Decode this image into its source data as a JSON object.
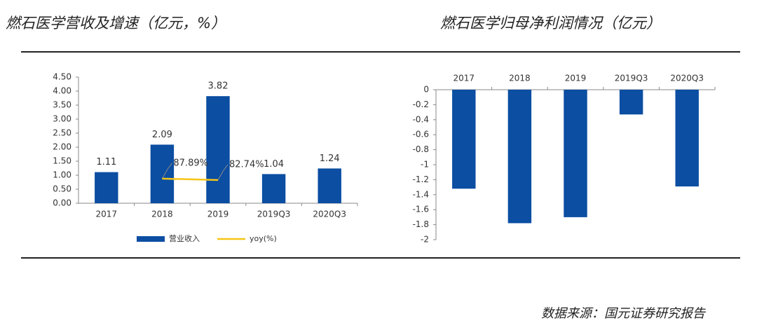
{
  "chart_data": [
    {
      "type": "bar",
      "title": "燃石医学营收及增速（亿元，%）",
      "categories": [
        "2017",
        "2018",
        "2019",
        "2019Q3",
        "2020Q3"
      ],
      "series": [
        {
          "name": "营业收入",
          "color": "#0b4ea2",
          "values": [
            1.11,
            2.09,
            3.82,
            1.04,
            1.24
          ]
        },
        {
          "name": "yoy(%)",
          "color": "#f5c518",
          "type": "line",
          "axis": "y2",
          "values": [
            null,
            87.89,
            82.74,
            null,
            null
          ],
          "value_labels": [
            null,
            "87.89%",
            "82.74%",
            null,
            null
          ]
        }
      ],
      "ylim": [
        0,
        4.5
      ],
      "yticks": [
        {
          "value": 0,
          "label": "0.00"
        },
        {
          "value": 0.5,
          "label": "0.50"
        },
        {
          "value": 1,
          "label": "1.00"
        },
        {
          "value": 1.5,
          "label": "1.50"
        },
        {
          "value": 2,
          "label": "2.00"
        },
        {
          "value": 2.5,
          "label": "2.50"
        },
        {
          "value": 3,
          "label": "3.00"
        },
        {
          "value": 3.5,
          "label": "3.50"
        },
        {
          "value": 4,
          "label": "4.00"
        },
        {
          "value": 4.5,
          "label": "4.50"
        }
      ],
      "y2lim": [
        0,
        450
      ],
      "legend": "bottom"
    },
    {
      "type": "bar",
      "title": "燃石医学归母净利润情况（亿元）",
      "categories": [
        "2017",
        "2018",
        "2019",
        "2019Q3",
        "2020Q3"
      ],
      "values": [
        -1.32,
        -1.78,
        -1.7,
        -0.33,
        -1.29
      ],
      "color": "#0b4ea2",
      "ylim": [
        -2,
        0
      ],
      "yticks": [
        0,
        -0.2,
        -0.4,
        -0.6,
        -0.8,
        -1,
        -1.2,
        -1.4,
        -1.6,
        -1.8,
        -2
      ]
    }
  ],
  "source": "数据来源：国元证券研究报告"
}
